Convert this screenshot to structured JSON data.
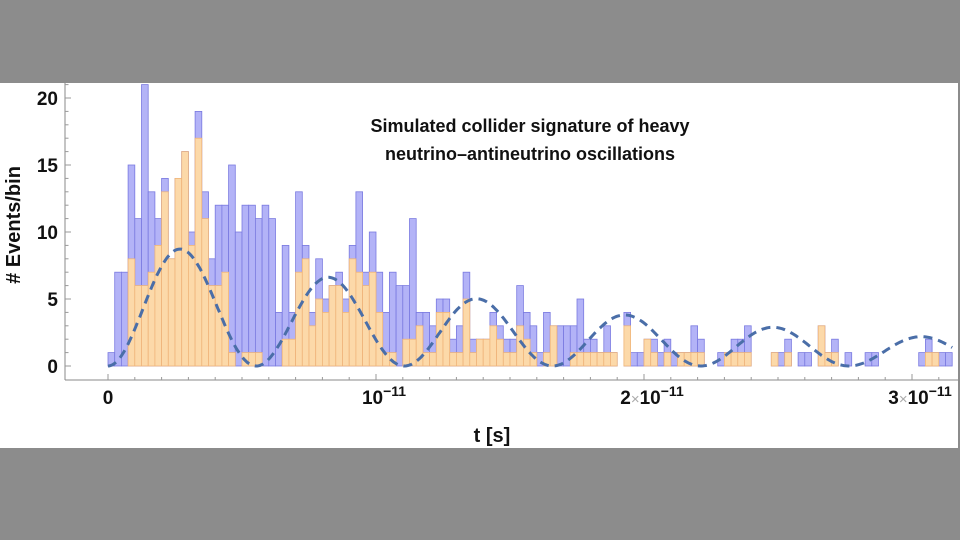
{
  "chart_data": {
    "type": "bar",
    "subtype": "overlaid histogram with model curve",
    "title_lines": [
      "Simulated collider signature of heavy",
      "neutrino–antineutrino oscillations"
    ],
    "xlabel": "t [s]",
    "ylabel": "# Events/bin",
    "xlim": [
      0,
      3.15e-11
    ],
    "ylim": [
      0,
      21
    ],
    "bin_width": 2.5e-13,
    "y_ticks": [
      0,
      5,
      10,
      15,
      20
    ],
    "y_tick_labels": [
      "0",
      "5",
      "10",
      "15",
      "20"
    ],
    "x_ticks": [
      {
        "value": 0,
        "mantissa": "",
        "times": "",
        "base": "0",
        "exp": ""
      },
      {
        "value": 1e-11,
        "mantissa": "",
        "times": "",
        "base": "10",
        "exp": "−11"
      },
      {
        "value": 2e-11,
        "mantissa": "2",
        "times": "×",
        "base": "10",
        "exp": "−11"
      },
      {
        "value": 3e-11,
        "mantissa": "3",
        "times": "×",
        "base": "10",
        "exp": "−11"
      }
    ],
    "series": [
      {
        "name": "blue histogram",
        "color": "#b3b3f7",
        "edge": "#7a7ae0",
        "values": [
          1,
          7,
          7,
          15,
          11,
          21,
          13,
          11,
          14,
          8,
          14,
          16,
          10,
          19,
          13,
          8,
          12,
          12,
          15,
          10,
          12,
          12,
          11,
          12,
          11,
          4,
          9,
          4,
          13,
          9,
          4,
          8,
          5,
          6,
          7,
          5,
          9,
          13,
          7,
          10,
          7,
          4,
          7,
          6,
          6,
          11,
          4,
          4,
          3,
          5,
          5,
          2,
          3,
          7,
          2,
          2,
          2,
          4,
          3,
          2,
          2,
          6,
          4,
          3,
          1,
          4,
          3,
          3,
          3,
          3,
          5,
          2,
          2,
          1,
          3,
          1,
          0,
          4,
          1,
          1,
          2,
          2,
          1,
          2,
          1,
          1,
          1,
          3,
          2,
          0,
          0,
          1,
          1,
          2,
          2,
          3,
          0,
          0,
          0,
          1,
          1,
          2,
          0,
          1,
          1,
          0,
          3,
          1,
          2,
          0,
          1,
          0,
          0,
          1,
          1,
          0,
          0,
          0,
          0,
          0,
          0,
          1,
          2,
          1,
          1,
          1
        ]
      },
      {
        "name": "orange histogram",
        "color": "#fcd9a9",
        "edge": "#efb47a",
        "values": [
          0,
          0,
          0,
          8,
          6,
          6,
          7,
          9,
          13,
          8,
          14,
          16,
          9,
          17,
          11,
          6,
          6,
          7,
          1,
          0,
          1,
          1,
          1,
          0,
          0,
          0,
          2,
          2,
          7,
          8,
          3,
          5,
          4,
          6,
          6,
          4,
          8,
          7,
          6,
          7,
          4,
          1,
          1,
          0,
          2,
          2,
          3,
          1,
          1,
          4,
          4,
          1,
          1,
          5,
          1,
          2,
          2,
          3,
          2,
          1,
          1,
          3,
          2,
          1,
          0,
          1,
          3,
          0,
          0,
          1,
          1,
          1,
          1,
          1,
          1,
          1,
          0,
          3,
          0,
          0,
          2,
          1,
          0,
          1,
          0,
          1,
          1,
          1,
          1,
          0,
          0,
          0,
          1,
          1,
          1,
          1,
          0,
          0,
          0,
          1,
          0,
          1,
          0,
          0,
          0,
          0,
          3,
          1,
          1,
          0,
          0,
          0,
          0,
          0,
          0,
          0,
          0,
          0,
          0,
          0,
          0,
          0,
          1,
          1,
          0,
          0
        ]
      }
    ],
    "curve": {
      "name": "model oscillation",
      "style": "dashed",
      "color": "#4a6ea8",
      "formula": "A*exp(-t/tau)*(1-cos(2*pi*t/T))",
      "A": 5.0,
      "tau": 2e-11,
      "T": 5.53e-12
    }
  }
}
